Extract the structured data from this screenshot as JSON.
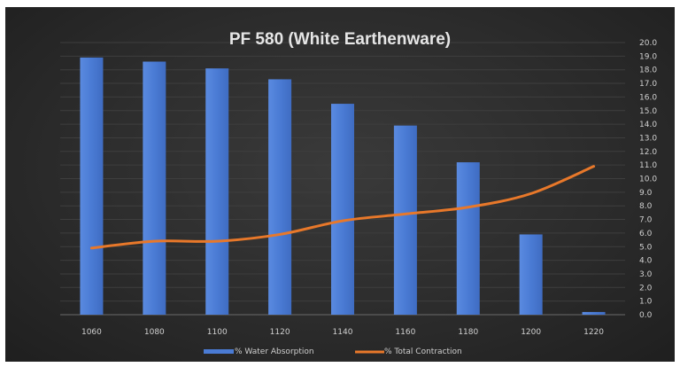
{
  "chart_data": {
    "type": "bar+line",
    "title": "PF 580 (White Earthenware)",
    "categories": [
      "1060",
      "1080",
      "1100",
      "1120",
      "1140",
      "1160",
      "1180",
      "1200",
      "1220"
    ],
    "series": [
      {
        "name": "% Water Absorption",
        "type": "bar",
        "values": [
          18.9,
          18.6,
          18.1,
          17.3,
          15.5,
          13.9,
          11.2,
          5.9,
          0.2
        ],
        "color": "#4a7bd4"
      },
      {
        "name": "% Total Contraction",
        "type": "line",
        "values": [
          4.9,
          5.4,
          5.4,
          5.9,
          6.9,
          7.4,
          7.9,
          8.9,
          10.9
        ],
        "color": "#e8782a"
      }
    ],
    "y_ticks": [
      "0.0",
      "1.0",
      "2.0",
      "3.0",
      "4.0",
      "5.0",
      "6.0",
      "7.0",
      "8.0",
      "9.0",
      "10.0",
      "11.0",
      "12.0",
      "13.0",
      "14.0",
      "15.0",
      "16.0",
      "17.0",
      "18.0",
      "19.0",
      "20.0"
    ],
    "ylim": [
      0,
      20
    ],
    "y_axis_side": "right",
    "grid": true,
    "legend": "bottom"
  }
}
